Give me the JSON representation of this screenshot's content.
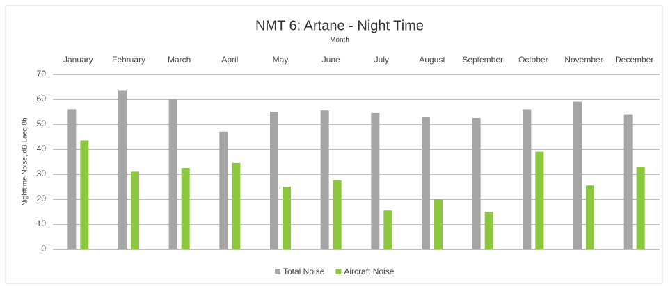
{
  "chart_data": {
    "type": "bar",
    "title": "NMT 6: Artane - Night Time",
    "x_label": "Month",
    "y_label": "Nighttime Noise, dB Laeq 8h",
    "categories": [
      "January",
      "February",
      "March",
      "April",
      "May",
      "June",
      "July",
      "August",
      "September",
      "October",
      "November",
      "December"
    ],
    "series": [
      {
        "name": "Total Noise",
        "color": "#a5a5a5",
        "values": [
          56,
          63.5,
          60,
          47,
          55,
          55.5,
          54.5,
          53,
          52.5,
          56,
          59,
          54
        ]
      },
      {
        "name": "Aircraft Noise",
        "color": "#8dc63f",
        "values": [
          43.5,
          31,
          32.5,
          34.5,
          25,
          27.5,
          15.5,
          20,
          15,
          39,
          25.5,
          33
        ]
      }
    ],
    "ylim": [
      0,
      70
    ],
    "yticks": [
      0,
      10,
      20,
      30,
      40,
      50,
      60,
      70
    ],
    "grid": true,
    "legend": "bottom"
  }
}
